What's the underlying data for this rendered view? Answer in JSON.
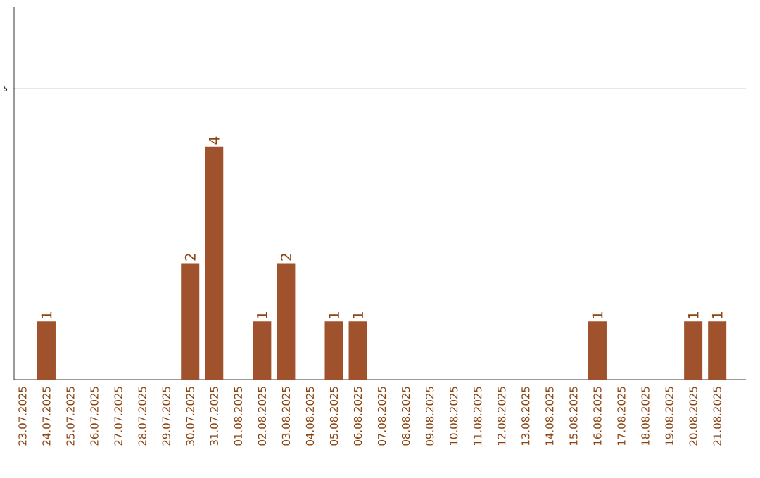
{
  "chart_data": {
    "type": "bar",
    "categories": [
      "23.07.2025",
      "24.07.2025",
      "25.07.2025",
      "26.07.2025",
      "27.07.2025",
      "28.07.2025",
      "29.07.2025",
      "30.07.2025",
      "31.07.2025",
      "01.08.2025",
      "02.08.2025",
      "03.08.2025",
      "04.08.2025",
      "05.08.2025",
      "06.08.2025",
      "07.08.2025",
      "08.08.2025",
      "09.08.2025",
      "10.08.2025",
      "11.08.2025",
      "12.08.2025",
      "13.08.2025",
      "14.08.2025",
      "15.08.2025",
      "16.08.2025",
      "17.08.2025",
      "18.08.2025",
      "19.08.2025",
      "20.08.2025",
      "21.08.2025"
    ],
    "values": [
      0,
      1,
      0,
      0,
      0,
      0,
      0,
      2,
      4,
      0,
      1,
      2,
      0,
      1,
      1,
      0,
      0,
      0,
      0,
      0,
      0,
      0,
      0,
      0,
      1,
      0,
      0,
      0,
      1,
      1
    ],
    "value_labels": [
      null,
      "1",
      null,
      null,
      null,
      null,
      null,
      "2",
      "4",
      null,
      "1",
      "2",
      null,
      "1",
      "1",
      null,
      null,
      null,
      null,
      null,
      null,
      null,
      null,
      null,
      "1",
      null,
      null,
      null,
      "1",
      "1"
    ],
    "color": "#a0522d",
    "ylim": [
      0,
      6.4
    ],
    "yticks": [
      5
    ],
    "grid": "y"
  }
}
